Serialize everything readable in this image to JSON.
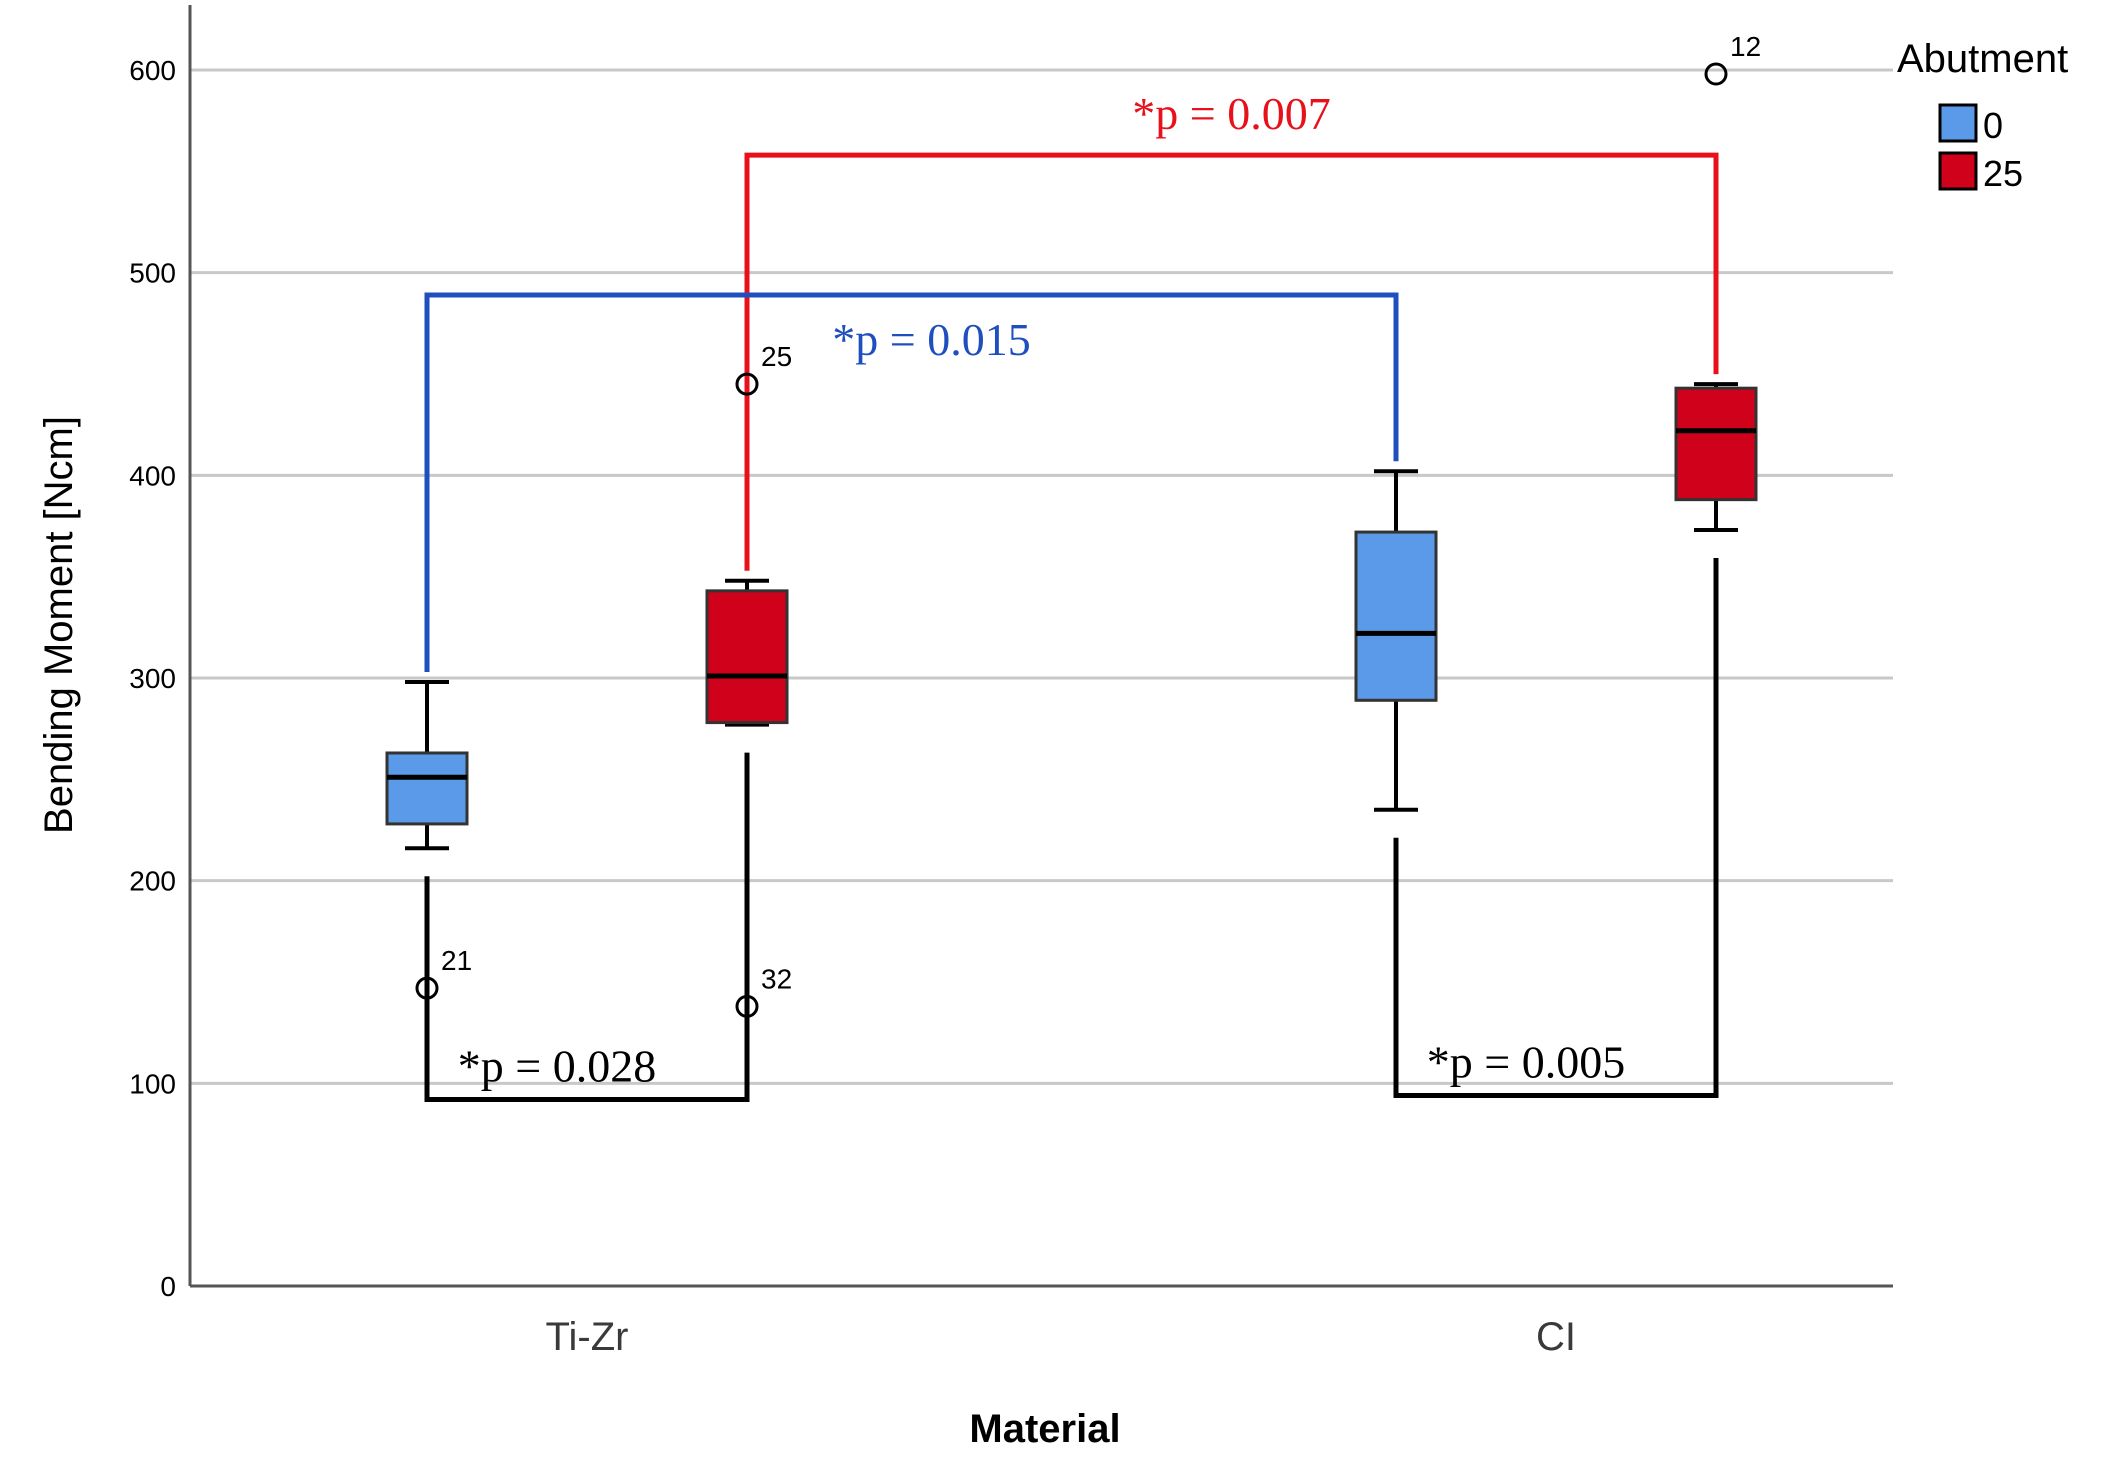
{
  "chart_data": {
    "type": "boxplot",
    "xlabel": "Material",
    "ylabel": "Bending Moment [Ncm]",
    "ylim": [
      0,
      600
    ],
    "yticks": [
      0,
      100,
      200,
      300,
      400,
      500,
      600
    ],
    "grid": "horizontal",
    "categories": [
      "Ti-Zr",
      "CI"
    ],
    "legend": {
      "title": "Abutment",
      "position": "top-right",
      "entries": [
        {
          "label": "0",
          "color": "#5a9ae8"
        },
        {
          "label": "25",
          "color": "#d0021b"
        }
      ]
    },
    "series": [
      {
        "name": "0",
        "color": "#5a9ae8",
        "boxes": [
          {
            "category": "Ti-Zr",
            "whisker_low": 216,
            "q1": 228,
            "median": 251,
            "q3": 263,
            "whisker_high": 298,
            "outliers": [
              {
                "value": 147,
                "label": "21"
              }
            ]
          },
          {
            "category": "CI",
            "whisker_low": 235,
            "q1": 289,
            "median": 322,
            "q3": 372,
            "whisker_high": 402,
            "outliers": []
          }
        ]
      },
      {
        "name": "25",
        "color": "#d0021b",
        "boxes": [
          {
            "category": "Ti-Zr",
            "whisker_low": 277,
            "q1": 278,
            "median": 301,
            "q3": 343,
            "whisker_high": 348,
            "outliers": [
              {
                "value": 445,
                "label": "25"
              },
              {
                "value": 138,
                "label": "32"
              }
            ]
          },
          {
            "category": "CI",
            "whisker_low": 373,
            "q1": 388,
            "median": 422,
            "q3": 443,
            "whisker_high": 445,
            "outliers": [
              {
                "value": 598,
                "label": "12"
              }
            ]
          }
        ]
      }
    ],
    "annotations": [
      {
        "text": "*p = 0.007",
        "color": "#e8101a",
        "from": {
          "category": "Ti-Zr",
          "series": "25"
        },
        "to": {
          "category": "CI",
          "series": "25"
        },
        "bracket_value": 558
      },
      {
        "text": "*p = 0.015",
        "color": "#1f4fbf",
        "from": {
          "category": "Ti-Zr",
          "series": "0"
        },
        "to": {
          "category": "CI",
          "series": "0"
        },
        "bracket_value": 489
      },
      {
        "text": "*p = 0.028",
        "color": "#000000",
        "from": {
          "category": "Ti-Zr",
          "series": "0"
        },
        "to": {
          "category": "Ti-Zr",
          "series": "25"
        },
        "bracket_value": 92
      },
      {
        "text": "*p = 0.005",
        "color": "#000000",
        "from": {
          "category": "CI",
          "series": "0"
        },
        "to": {
          "category": "CI",
          "series": "25"
        },
        "bracket_value": 94
      }
    ]
  }
}
